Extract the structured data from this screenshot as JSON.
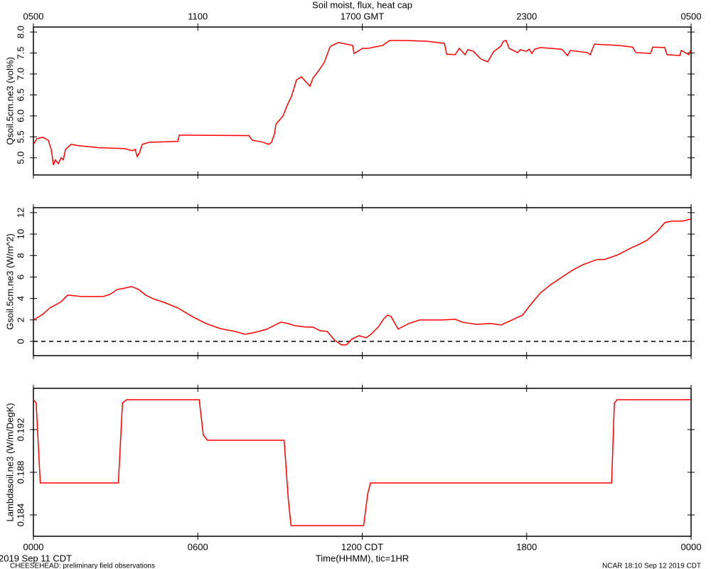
{
  "chart_data": [
    {
      "type": "line",
      "title": "Soil moist, flux, heat cap",
      "ylabel": "Qsoil.5cm.ne3 (vol%)",
      "xlim": [
        0,
        24
      ],
      "ylim": [
        4.59,
        8.12
      ],
      "x2ticks": [
        {
          "value": 0,
          "label": "0500"
        },
        {
          "value": 6,
          "label": "1100"
        },
        {
          "value": 12,
          "label": "1700 GMT"
        },
        {
          "value": 18,
          "label": "2300"
        },
        {
          "value": 24,
          "label": "0500"
        }
      ],
      "yticks": [
        {
          "value": 5,
          "label": "5.0"
        },
        5.5,
        {
          "value": 6,
          "label": "6.0"
        },
        6.5,
        {
          "value": 7,
          "label": "7.0"
        },
        7.5,
        {
          "value": 8,
          "label": "8.0"
        }
      ],
      "x": [
        0,
        0.13,
        0.34,
        0.54,
        0.65,
        0.73,
        0.8,
        0.91,
        1.01,
        1.09,
        1.17,
        1.38,
        1.63,
        2.41,
        3.32,
        3.61,
        3.71,
        3.79,
        3.87,
        3.97,
        4.23,
        5.27,
        5.32,
        7.86,
        7.99,
        8.38,
        8.59,
        8.69,
        8.8,
        8.85,
        9.11,
        9.26,
        9.42,
        9.6,
        9.78,
        10.09,
        10.2,
        10.4,
        10.61,
        10.82,
        10.9,
        11.13,
        11.65,
        11.7,
        12.01,
        12.22,
        12.43,
        12.74,
        13.0,
        13.57,
        14.35,
        15.0,
        15.08,
        15.39,
        15.54,
        15.75,
        15.85,
        16.06,
        16.32,
        16.58,
        16.79,
        17.05,
        17.15,
        17.25,
        17.36,
        17.67,
        17.77,
        17.98,
        18.09,
        18.19,
        18.29,
        18.5,
        19.28,
        19.49,
        19.59,
        20.21,
        20.32,
        20.47,
        21.35,
        21.87,
        21.98,
        22.52,
        22.6,
        23.04,
        23.12,
        23.59,
        23.64,
        23.92,
        24
      ],
      "series": [
        {
          "color": "#ff0000",
          "values": [
            5.32,
            5.46,
            5.49,
            5.42,
            5.2,
            4.83,
            4.95,
            4.86,
            5.0,
            4.95,
            5.2,
            5.32,
            5.29,
            5.24,
            5.22,
            5.17,
            5.2,
            5.03,
            5.12,
            5.32,
            5.37,
            5.39,
            5.54,
            5.53,
            5.42,
            5.37,
            5.32,
            5.37,
            5.58,
            5.8,
            6.0,
            6.25,
            6.47,
            6.86,
            6.93,
            6.71,
            6.9,
            7.07,
            7.27,
            7.64,
            7.68,
            7.75,
            7.68,
            7.49,
            7.61,
            7.61,
            7.64,
            7.68,
            7.8,
            7.8,
            7.78,
            7.73,
            7.47,
            7.46,
            7.61,
            7.46,
            7.58,
            7.54,
            7.36,
            7.29,
            7.53,
            7.66,
            7.78,
            7.8,
            7.61,
            7.51,
            7.58,
            7.54,
            7.59,
            7.49,
            7.59,
            7.63,
            7.59,
            7.44,
            7.56,
            7.51,
            7.46,
            7.71,
            7.68,
            7.64,
            7.51,
            7.49,
            7.64,
            7.63,
            7.46,
            7.44,
            7.56,
            7.46,
            7.59
          ]
        }
      ]
    },
    {
      "type": "line",
      "ylabel": "Gsoil.5cm.ne3 (W/m^2)",
      "xlim": [
        0,
        24
      ],
      "ylim": [
        -1.33,
        12.46
      ],
      "yticks": [
        0,
        2,
        4,
        6,
        8,
        10,
        12
      ],
      "hline": 0,
      "x": [
        0,
        0.34,
        0.6,
        0.99,
        1.25,
        1.76,
        2.54,
        2.8,
        3.06,
        3.24,
        3.58,
        3.84,
        4.1,
        4.36,
        4.75,
        5.27,
        5.79,
        6.3,
        6.82,
        7.34,
        7.73,
        8.12,
        8.51,
        8.77,
        9.03,
        9.29,
        9.55,
        9.94,
        10.2,
        10.46,
        10.72,
        10.98,
        11.24,
        11.42,
        11.62,
        11.88,
        12.14,
        12.32,
        12.58,
        12.79,
        12.92,
        13.05,
        13.31,
        13.44,
        13.7,
        14.09,
        14.87,
        15.39,
        15.65,
        16.16,
        16.68,
        17.07,
        17.46,
        17.85,
        18.11,
        18.5,
        18.89,
        19.28,
        19.67,
        20.06,
        20.58,
        20.84,
        21.35,
        21.74,
        22.13,
        22.39,
        22.78,
        23.04,
        23.3,
        23.69,
        24
      ],
      "series": [
        {
          "color": "#ff0000",
          "values": [
            1.99,
            2.52,
            3.12,
            3.65,
            4.31,
            4.18,
            4.18,
            4.38,
            4.84,
            4.91,
            5.11,
            4.84,
            4.31,
            3.98,
            3.65,
            3.12,
            2.32,
            1.66,
            1.19,
            0.93,
            0.66,
            0.86,
            1.13,
            1.46,
            1.79,
            1.66,
            1.46,
            1.33,
            1.33,
            0.99,
            0.93,
            0.13,
            -0.33,
            -0.33,
            0.2,
            0.53,
            0.33,
            0.66,
            1.33,
            2.12,
            2.45,
            2.32,
            1.13,
            1.33,
            1.66,
            1.99,
            1.99,
            2.06,
            1.79,
            1.59,
            1.66,
            1.53,
            1.99,
            2.45,
            3.32,
            4.51,
            5.31,
            5.97,
            6.63,
            7.16,
            7.63,
            7.63,
            8.09,
            8.62,
            9.08,
            9.42,
            10.28,
            11.07,
            11.21,
            11.21,
            11.41
          ]
        }
      ]
    },
    {
      "type": "line",
      "ylabel": "Lambdasoil.ne3 (W/m/DegK)",
      "xlabel": "Time(HHMM), tic=1HR",
      "xlim": [
        0,
        24
      ],
      "ylim": [
        0.182,
        0.19587
      ],
      "yticks": [
        0.184,
        0.188,
        0.192
      ],
      "xticks": [
        {
          "value": 0,
          "label": "0000"
        },
        {
          "value": 6,
          "label": "0600"
        },
        {
          "value": 12,
          "label": "1200 CDT"
        },
        {
          "value": 18,
          "label": "1800"
        },
        {
          "value": 24,
          "label": "0000"
        }
      ],
      "x": [
        0,
        0.1,
        0.25,
        3.1,
        3.25,
        3.4,
        6.05,
        6.2,
        6.35,
        9.15,
        9.3,
        9.4,
        12.05,
        12.2,
        12.3,
        21.1,
        21.2,
        21.3,
        24
      ],
      "series": [
        {
          "color": "#ff0000",
          "values": [
            0.1948,
            0.1945,
            0.187,
            0.187,
            0.1945,
            0.1948,
            0.1948,
            0.1915,
            0.191,
            0.191,
            0.1855,
            0.183,
            0.183,
            0.186,
            0.187,
            0.187,
            0.1945,
            0.1948,
            0.1948
          ]
        }
      ]
    }
  ],
  "footer": {
    "date": "2019 Sep 11 CDT",
    "project": "CHEESEHEAD: preliminary field observations",
    "stamp": "NCAR 18:10 Sep 12 2019 CDT"
  }
}
